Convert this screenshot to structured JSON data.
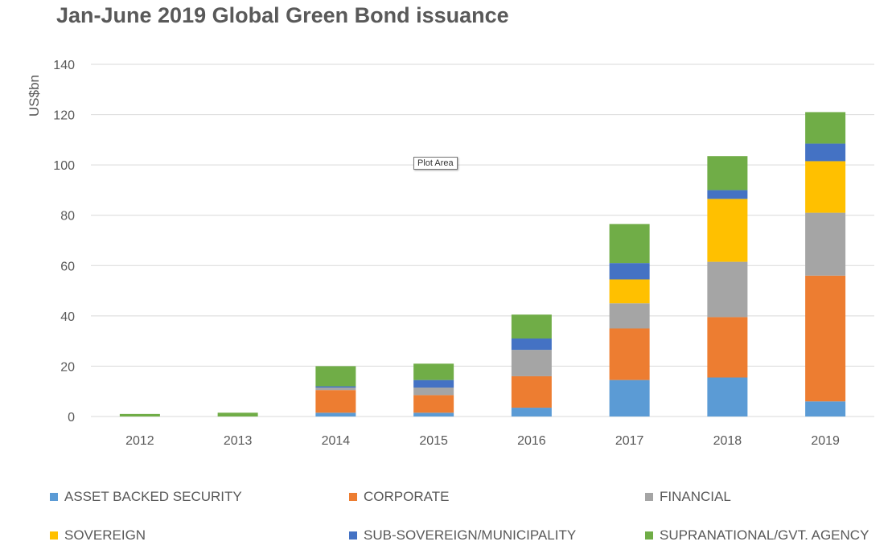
{
  "chart_data": {
    "type": "bar",
    "stacked": true,
    "title": "Jan-June 2019 Global Green Bond issuance",
    "ylabel": "US$bn",
    "xlabel": "",
    "ylim": [
      0,
      140
    ],
    "yticks": [
      0,
      20,
      40,
      60,
      80,
      100,
      120,
      140
    ],
    "grid": true,
    "legend_position": "bottom",
    "categories": [
      "2012",
      "2013",
      "2014",
      "2015",
      "2016",
      "2017",
      "2018",
      "2019"
    ],
    "series": [
      {
        "name": "ASSET BACKED SECURITY",
        "color": "#5b9bd5",
        "values": [
          0,
          0,
          1.5,
          1.5,
          3.5,
          14.5,
          15.5,
          6
        ]
      },
      {
        "name": "CORPORATE",
        "color": "#ed7d31",
        "values": [
          0,
          0,
          9,
          7,
          12.5,
          20.5,
          24,
          50
        ]
      },
      {
        "name": "FINANCIAL",
        "color": "#a5a5a5",
        "values": [
          0,
          0,
          1,
          3,
          10.5,
          10,
          22,
          25
        ]
      },
      {
        "name": "SOVEREIGN",
        "color": "#ffc000",
        "values": [
          0,
          0,
          0,
          0,
          0,
          9.5,
          25,
          20.5
        ]
      },
      {
        "name": "SUB-SOVEREIGN/MUNICIPALITY",
        "color": "#4472c4",
        "values": [
          0,
          0,
          0.5,
          3,
          4.5,
          6.5,
          3.5,
          7
        ]
      },
      {
        "name": "SUPRANATIONAL/GVT. AGENCY",
        "color": "#70ad47",
        "values": [
          1,
          1.5,
          8,
          6.5,
          9.5,
          15.5,
          13.5,
          12.5
        ]
      }
    ]
  },
  "tooltip": "Plot Area"
}
